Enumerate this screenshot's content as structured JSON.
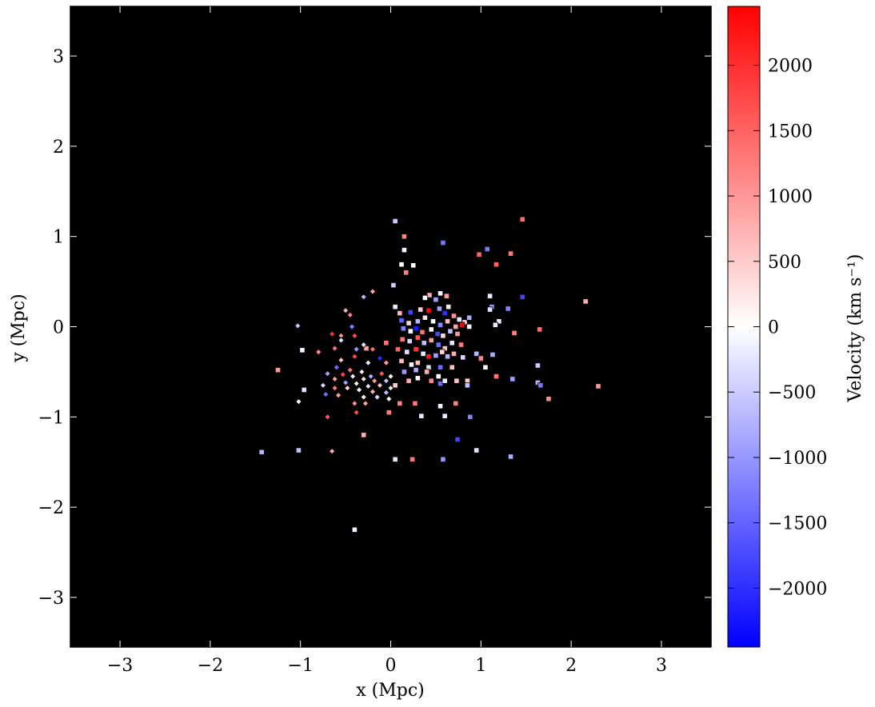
{
  "chart_data": {
    "type": "scatter",
    "xlabel": "x (Mpc)",
    "ylabel": "y (Mpc)",
    "xlim": [
      -3.55,
      3.55
    ],
    "ylim": [
      -3.55,
      3.55
    ],
    "x_ticks": [
      -3,
      -2,
      -1,
      0,
      1,
      2,
      3
    ],
    "y_ticks": [
      -3,
      -2,
      -1,
      0,
      1,
      2,
      3
    ],
    "x_tick_labels": [
      "−3",
      "−2",
      "−1",
      "0",
      "1",
      "2",
      "3"
    ],
    "y_tick_labels": [
      "−3",
      "−2",
      "−1",
      "0",
      "1",
      "2",
      "3"
    ],
    "background": "#000000",
    "grid": false,
    "colorbar": {
      "label": "Velocity (km s⁻¹)",
      "range": [
        -2450,
        2450
      ],
      "ticks": [
        -2000,
        -1500,
        -1000,
        -500,
        0,
        500,
        1000,
        1500,
        2000
      ],
      "tick_labels": [
        "−2000",
        "−1500",
        "−1000",
        "−500",
        "0",
        "500",
        "1000",
        "1500",
        "2000"
      ],
      "colormap": "bwr",
      "colors": {
        "low": "#0000ff",
        "mid": "#ffffff",
        "high": "#ff0000"
      }
    },
    "series": [
      {
        "marker": "square",
        "points": [
          [
            0.05,
            1.17,
            -500
          ],
          [
            0.15,
            1.0,
            1200
          ],
          [
            0.58,
            0.93,
            -1300
          ],
          [
            0.15,
            0.85,
            -100
          ],
          [
            0.12,
            0.69,
            0
          ],
          [
            0.25,
            0.68,
            0
          ],
          [
            0.17,
            0.6,
            1200
          ],
          [
            0.03,
            0.46,
            -500
          ],
          [
            0.43,
            0.35,
            800
          ],
          [
            0.55,
            0.37,
            -100
          ],
          [
            0.62,
            0.34,
            900
          ],
          [
            0.38,
            0.32,
            0
          ],
          [
            0.5,
            0.3,
            -900
          ],
          [
            0.64,
            0.22,
            200
          ],
          [
            0.05,
            0.22,
            -200
          ],
          [
            0.1,
            0.15,
            700
          ],
          [
            0.22,
            0.16,
            -1800
          ],
          [
            0.33,
            0.19,
            500
          ],
          [
            0.42,
            0.18,
            2400
          ],
          [
            0.54,
            0.2,
            -900
          ],
          [
            0.6,
            0.15,
            -2000
          ],
          [
            0.7,
            0.12,
            1100
          ],
          [
            0.76,
            0.08,
            -200
          ],
          [
            0.82,
            0.05,
            400
          ],
          [
            0.12,
            0.07,
            -1500
          ],
          [
            0.2,
            0.04,
            400
          ],
          [
            0.3,
            0.06,
            -700
          ],
          [
            0.38,
            0.1,
            300
          ],
          [
            0.47,
            0.06,
            0
          ],
          [
            0.55,
            0.02,
            -1100
          ],
          [
            0.63,
            0.06,
            700
          ],
          [
            0.72,
            0.0,
            900
          ],
          [
            0.79,
            0.02,
            2400
          ],
          [
            0.87,
            0.1,
            -800
          ],
          [
            0.87,
            0.0,
            100
          ],
          [
            0.14,
            -0.02,
            -1200
          ],
          [
            0.22,
            -0.05,
            0
          ],
          [
            0.28,
            -0.02,
            -2200
          ],
          [
            0.35,
            -0.06,
            1400
          ],
          [
            0.45,
            -0.03,
            -100
          ],
          [
            0.52,
            -0.08,
            -1800
          ],
          [
            0.58,
            -0.1,
            400
          ],
          [
            0.66,
            -0.05,
            -600
          ],
          [
            0.74,
            -0.08,
            1000
          ],
          [
            0.13,
            -0.14,
            1300
          ],
          [
            0.21,
            -0.16,
            -400
          ],
          [
            0.3,
            -0.12,
            1600
          ],
          [
            0.37,
            -0.18,
            -600
          ],
          [
            0.45,
            -0.15,
            1000
          ],
          [
            0.53,
            -0.2,
            -1400
          ],
          [
            0.6,
            -0.24,
            600
          ],
          [
            0.68,
            -0.18,
            -200
          ],
          [
            0.78,
            -0.2,
            1300
          ],
          [
            0.08,
            -0.25,
            1500
          ],
          [
            0.18,
            -0.28,
            -300
          ],
          [
            0.28,
            -0.25,
            1900
          ],
          [
            0.36,
            -0.3,
            -200
          ],
          [
            0.42,
            -0.33,
            2200
          ],
          [
            0.5,
            -0.32,
            -900
          ],
          [
            0.57,
            -0.28,
            400
          ],
          [
            0.63,
            -0.33,
            -700
          ],
          [
            0.7,
            -0.3,
            800
          ],
          [
            0.8,
            -0.34,
            -400
          ],
          [
            0.95,
            -0.3,
            -700
          ],
          [
            1.0,
            -0.36,
            1000
          ],
          [
            1.05,
            -0.45,
            100
          ],
          [
            0.12,
            -0.38,
            700
          ],
          [
            0.23,
            -0.42,
            -100
          ],
          [
            0.3,
            -0.4,
            600
          ],
          [
            0.42,
            -0.45,
            -300
          ],
          [
            0.55,
            -0.45,
            -1400
          ],
          [
            0.68,
            -0.45,
            600
          ],
          [
            0.15,
            -0.5,
            -1000
          ],
          [
            0.28,
            -0.48,
            -800
          ],
          [
            0.4,
            -0.5,
            800
          ],
          [
            0.53,
            -0.55,
            0
          ],
          [
            0.2,
            -0.6,
            800
          ],
          [
            0.3,
            -0.57,
            0
          ],
          [
            0.45,
            -0.6,
            1200
          ],
          [
            0.55,
            -0.63,
            -1400
          ],
          [
            0.6,
            -0.6,
            -200
          ],
          [
            0.73,
            -0.6,
            600
          ],
          [
            0.85,
            -0.6,
            500
          ],
          [
            0.05,
            -0.65,
            500
          ],
          [
            0.85,
            -0.65,
            -600
          ],
          [
            0.1,
            -0.85,
            1200
          ],
          [
            0.27,
            -0.85,
            1300
          ],
          [
            0.55,
            -0.88,
            -100
          ],
          [
            0.72,
            -0.85,
            1200
          ],
          [
            -0.02,
            -0.95,
            1300
          ],
          [
            0.34,
            -0.99,
            -200
          ],
          [
            0.6,
            -0.99,
            -200
          ],
          [
            0.88,
            -1.0,
            -1200
          ],
          [
            0.74,
            -1.25,
            -1800
          ],
          [
            0.95,
            -1.37,
            -300
          ],
          [
            0.05,
            -1.47,
            -200
          ],
          [
            0.24,
            -1.47,
            1300
          ],
          [
            0.58,
            -1.47,
            -1000
          ],
          [
            1.33,
            -1.44,
            -800
          ],
          [
            1.17,
            0.69,
            1500
          ],
          [
            1.33,
            0.81,
            1300
          ],
          [
            1.07,
            0.86,
            -1300
          ],
          [
            0.98,
            0.8,
            1500
          ],
          [
            1.46,
            1.19,
            1400
          ],
          [
            1.1,
            0.34,
            -200
          ],
          [
            1.12,
            0.22,
            -1000
          ],
          [
            1.46,
            0.33,
            -1800
          ],
          [
            1.2,
            0.06,
            -200
          ],
          [
            1.16,
            0.02,
            -200
          ],
          [
            1.37,
            -0.07,
            1200
          ],
          [
            1.65,
            -0.03,
            1400
          ],
          [
            1.13,
            -0.31,
            -800
          ],
          [
            1.0,
            -0.35,
            1200
          ],
          [
            1.17,
            -0.55,
            1300
          ],
          [
            1.35,
            -0.58,
            -900
          ],
          [
            1.63,
            -0.43,
            -500
          ],
          [
            1.63,
            -0.62,
            -700
          ],
          [
            1.66,
            -0.65,
            -1300
          ],
          [
            1.75,
            -0.8,
            1100
          ],
          [
            2.16,
            0.28,
            800
          ],
          [
            2.3,
            -0.66,
            1000
          ],
          [
            1.3,
            0.2,
            -1200
          ],
          [
            1.1,
            0.19,
            -300
          ],
          [
            -0.98,
            -0.26,
            -100
          ],
          [
            -1.25,
            -0.48,
            1000
          ],
          [
            -0.96,
            -0.7,
            -300
          ],
          [
            -0.27,
            -0.24,
            900
          ],
          [
            -0.3,
            -1.2,
            800
          ],
          [
            -1.43,
            -1.39,
            -700
          ],
          [
            -1.02,
            -1.37,
            -600
          ],
          [
            -0.4,
            -2.25,
            -100
          ],
          [
            -0.05,
            -0.18,
            1300
          ]
        ]
      },
      {
        "marker": "diamond",
        "points": [
          [
            -0.2,
            0.39,
            900
          ],
          [
            -0.3,
            0.33,
            -700
          ],
          [
            -0.5,
            0.18,
            800
          ],
          [
            -0.45,
            0.13,
            1200
          ],
          [
            -1.03,
            0.01,
            -600
          ],
          [
            -0.65,
            -0.08,
            2000
          ],
          [
            -0.55,
            -0.1,
            1000
          ],
          [
            -0.43,
            0.0,
            -1200
          ],
          [
            -0.4,
            -0.1,
            1700
          ],
          [
            -0.55,
            -0.15,
            -300
          ],
          [
            -0.62,
            -0.24,
            1300
          ],
          [
            -0.38,
            -0.25,
            -1000
          ],
          [
            -0.3,
            -0.2,
            -300
          ],
          [
            -0.2,
            -0.25,
            1400
          ],
          [
            -0.8,
            -0.28,
            1100
          ],
          [
            -0.4,
            -0.33,
            1800
          ],
          [
            -0.55,
            -0.37,
            600
          ],
          [
            -0.25,
            -0.4,
            -200
          ],
          [
            -0.12,
            -0.35,
            -2000
          ],
          [
            -0.05,
            -0.4,
            1000
          ],
          [
            -0.6,
            -0.45,
            -1400
          ],
          [
            -0.45,
            -0.48,
            1400
          ],
          [
            -0.32,
            -0.5,
            200
          ],
          [
            -0.22,
            -0.55,
            -800
          ],
          [
            -0.1,
            -0.52,
            1600
          ],
          [
            0.0,
            -0.55,
            0
          ],
          [
            -0.7,
            -0.52,
            -900
          ],
          [
            -0.53,
            -0.53,
            1800
          ],
          [
            -0.42,
            -0.55,
            -200
          ],
          [
            -0.3,
            -0.58,
            300
          ],
          [
            -0.18,
            -0.6,
            1000
          ],
          [
            -0.05,
            -0.6,
            -600
          ],
          [
            -0.62,
            -0.58,
            900
          ],
          [
            -0.5,
            -0.62,
            -900
          ],
          [
            -0.38,
            -0.63,
            100
          ],
          [
            -0.25,
            -0.66,
            -300
          ],
          [
            -0.12,
            -0.65,
            600
          ],
          [
            0.0,
            -0.68,
            -200
          ],
          [
            -0.75,
            -0.65,
            -400
          ],
          [
            -0.62,
            -0.68,
            1300
          ],
          [
            -0.48,
            -0.68,
            400
          ],
          [
            -0.35,
            -0.7,
            -100
          ],
          [
            -0.2,
            -0.72,
            800
          ],
          [
            -0.05,
            -0.73,
            -700
          ],
          [
            -0.72,
            -0.75,
            -1400
          ],
          [
            -0.58,
            -0.76,
            900
          ],
          [
            -0.3,
            -0.78,
            200
          ],
          [
            -0.15,
            -0.78,
            -400
          ],
          [
            -0.02,
            -0.8,
            100
          ],
          [
            -1.02,
            -0.83,
            -100
          ],
          [
            -0.4,
            -0.85,
            1100
          ],
          [
            -0.28,
            -0.85,
            900
          ],
          [
            -0.7,
            -1.0,
            1600
          ],
          [
            -0.38,
            -0.95,
            1700
          ],
          [
            -0.65,
            -1.38,
            800
          ]
        ]
      }
    ]
  }
}
